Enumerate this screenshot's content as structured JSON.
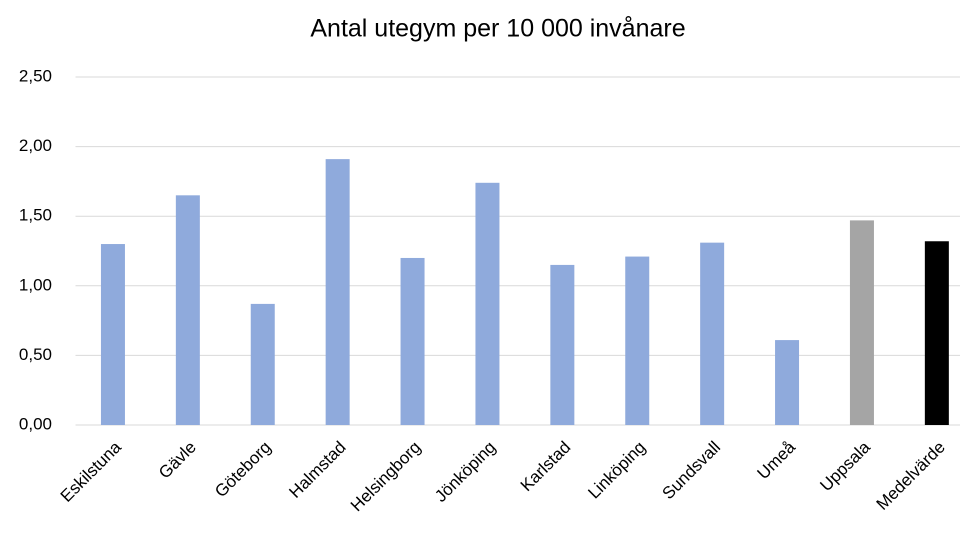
{
  "chart_data": {
    "type": "bar",
    "title": "Antal utegym per 10 000 invånare",
    "categories": [
      "Eskilstuna",
      "Gävle",
      "Göteborg",
      "Halmstad",
      "Helsingborg",
      "Jönköping",
      "Karlstad",
      "Linköping",
      "Sundsvall",
      "Umeå",
      "Uppsala",
      "Medelvärde"
    ],
    "values": [
      1.3,
      1.65,
      0.87,
      1.91,
      1.2,
      1.74,
      1.15,
      1.21,
      1.31,
      0.61,
      1.47,
      1.32
    ],
    "colors": [
      "#8faadc",
      "#8faadc",
      "#8faadc",
      "#8faadc",
      "#8faadc",
      "#8faadc",
      "#8faadc",
      "#8faadc",
      "#8faadc",
      "#8faadc",
      "#a5a5a5",
      "#000000"
    ],
    "ylim": [
      0,
      2.5
    ],
    "yticks": [
      {
        "value": 0,
        "label": "0,00"
      },
      {
        "value": 0.5,
        "label": "0,50"
      },
      {
        "value": 1,
        "label": "1,00"
      },
      {
        "value": 1.5,
        "label": "1,50"
      },
      {
        "value": 2,
        "label": "2,00"
      },
      {
        "value": 2.5,
        "label": "2,50"
      }
    ],
    "grid": true
  }
}
